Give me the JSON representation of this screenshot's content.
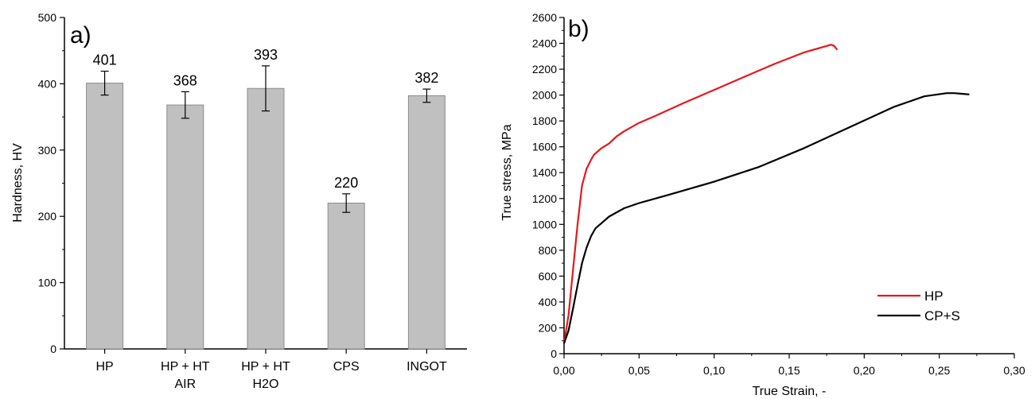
{
  "chart_data": [
    {
      "panel_label": "a)",
      "type": "bar",
      "categories": [
        [
          "HP"
        ],
        [
          "HP + HT",
          "AIR"
        ],
        [
          "HP + HT",
          "H2O"
        ],
        [
          "CPS"
        ],
        [
          "INGOT"
        ]
      ],
      "values": [
        401,
        368,
        393,
        220,
        382
      ],
      "error": [
        18,
        20,
        34,
        14,
        10
      ],
      "data_labels": [
        "401",
        "368",
        "393",
        "220",
        "382"
      ],
      "ylabel": "Hardness, HV",
      "ylim": [
        0,
        500
      ],
      "yticks": [
        0,
        100,
        200,
        300,
        400,
        500
      ],
      "bar_color": "#c0c0c0",
      "grid": false
    },
    {
      "panel_label": "b)",
      "type": "line",
      "xlabel": "True Strain, -",
      "ylabel": "True stress, MPa",
      "xlim": [
        0,
        0.3
      ],
      "ylim": [
        0,
        2600
      ],
      "xticks": [
        "0,00",
        "0,05",
        "0,10",
        "0,15",
        "0,20",
        "0,25",
        "0,30"
      ],
      "yticks": [
        0,
        200,
        400,
        600,
        800,
        1000,
        1200,
        1400,
        1600,
        1800,
        2000,
        2200,
        2400,
        2600
      ],
      "legend_position": "bottom-right",
      "grid": false,
      "series": [
        {
          "name": "HP",
          "color": "#e8161c",
          "x": [
            0.0,
            0.003,
            0.006,
            0.009,
            0.012,
            0.015,
            0.018,
            0.02,
            0.025,
            0.03,
            0.035,
            0.04,
            0.05,
            0.06,
            0.08,
            0.1,
            0.12,
            0.14,
            0.16,
            0.175,
            0.178,
            0.18,
            0.182
          ],
          "y": [
            80,
            300,
            650,
            1000,
            1300,
            1430,
            1500,
            1540,
            1590,
            1625,
            1680,
            1720,
            1785,
            1835,
            1940,
            2040,
            2140,
            2240,
            2330,
            2380,
            2390,
            2380,
            2350
          ]
        },
        {
          "name": "CP+S",
          "color": "#000000",
          "x": [
            0.0,
            0.003,
            0.006,
            0.009,
            0.012,
            0.015,
            0.018,
            0.021,
            0.025,
            0.03,
            0.04,
            0.05,
            0.07,
            0.1,
            0.13,
            0.16,
            0.19,
            0.22,
            0.24,
            0.255,
            0.26,
            0.265,
            0.27
          ],
          "y": [
            80,
            180,
            350,
            530,
            700,
            820,
            910,
            970,
            1010,
            1060,
            1125,
            1165,
            1230,
            1330,
            1445,
            1590,
            1750,
            1910,
            1990,
            2015,
            2015,
            2010,
            2005
          ]
        }
      ]
    }
  ]
}
